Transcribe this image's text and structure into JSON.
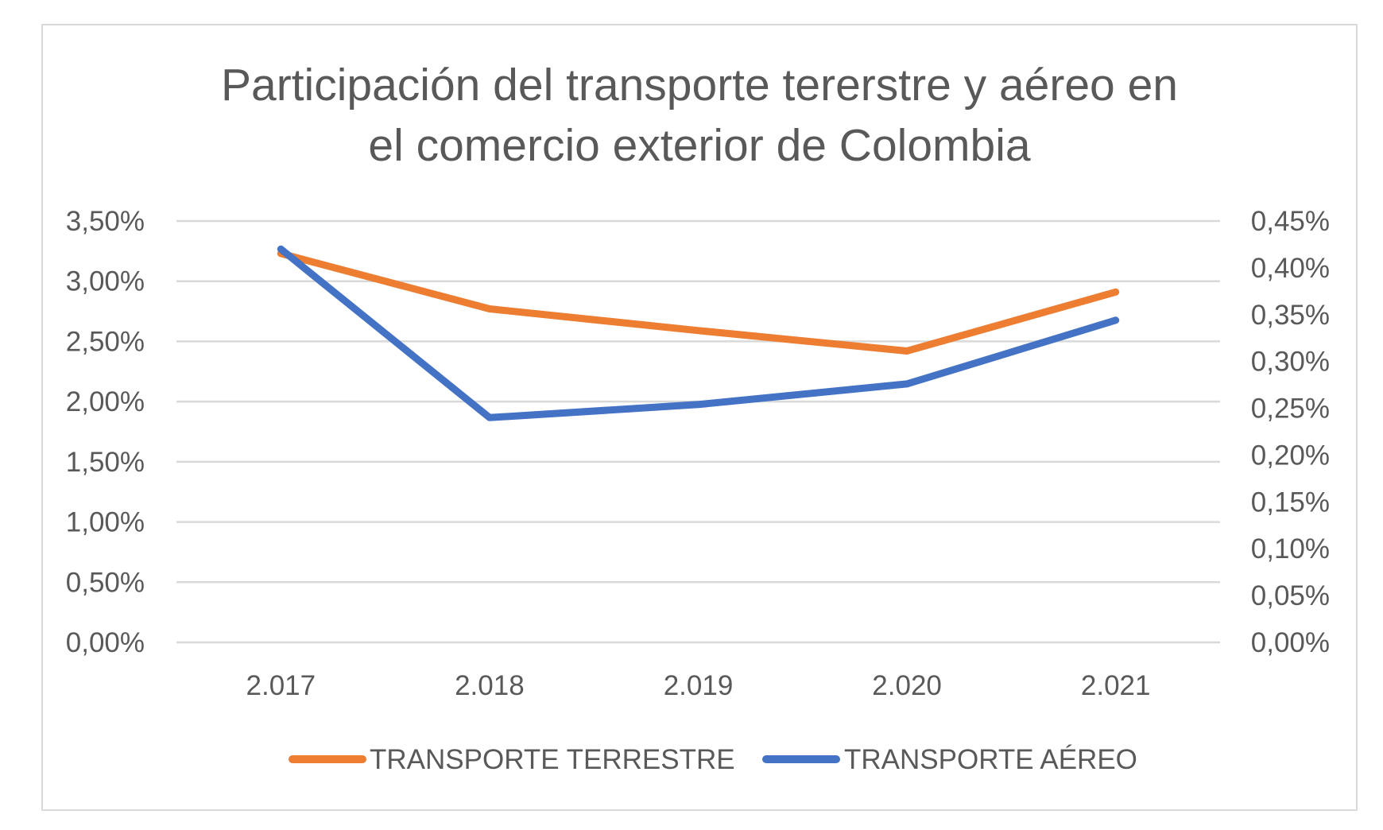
{
  "chart_data": {
    "type": "line",
    "title_lines": [
      "Participación del transporte tererstre y aéreo en",
      "el comercio exterior de Colombia"
    ],
    "categories": [
      "2.017",
      "2.018",
      "2.019",
      "2.020",
      "2.021"
    ],
    "y_left": {
      "ylim": [
        0,
        3.5
      ],
      "tick_values": [
        0,
        0.5,
        1.0,
        1.5,
        2.0,
        2.5,
        3.0,
        3.5
      ],
      "tick_labels": [
        "0,00%",
        "0,50%",
        "1,00%",
        "1,50%",
        "2,00%",
        "2,50%",
        "3,00%",
        "3,50%"
      ]
    },
    "y_right": {
      "ylim": [
        0,
        0.45
      ],
      "tick_values": [
        0,
        0.05,
        0.1,
        0.15,
        0.2,
        0.25,
        0.3,
        0.35,
        0.4,
        0.45
      ],
      "tick_labels": [
        "0,00%",
        "0,05%",
        "0,10%",
        "0,15%",
        "0,20%",
        "0,25%",
        "0,30%",
        "0,35%",
        "0,40%",
        "0,45%"
      ]
    },
    "grid": true,
    "legend_position": "bottom",
    "series": [
      {
        "name": "TRANSPORTE TERRESTRE",
        "axis": "left",
        "color": "#ED7D31",
        "values": [
          3.23,
          2.77,
          2.59,
          2.42,
          2.91
        ]
      },
      {
        "name": "TRANSPORTE AÉREO",
        "axis": "right",
        "color": "#4472C4",
        "values": [
          0.42,
          0.24,
          0.254,
          0.276,
          0.344
        ]
      }
    ]
  }
}
